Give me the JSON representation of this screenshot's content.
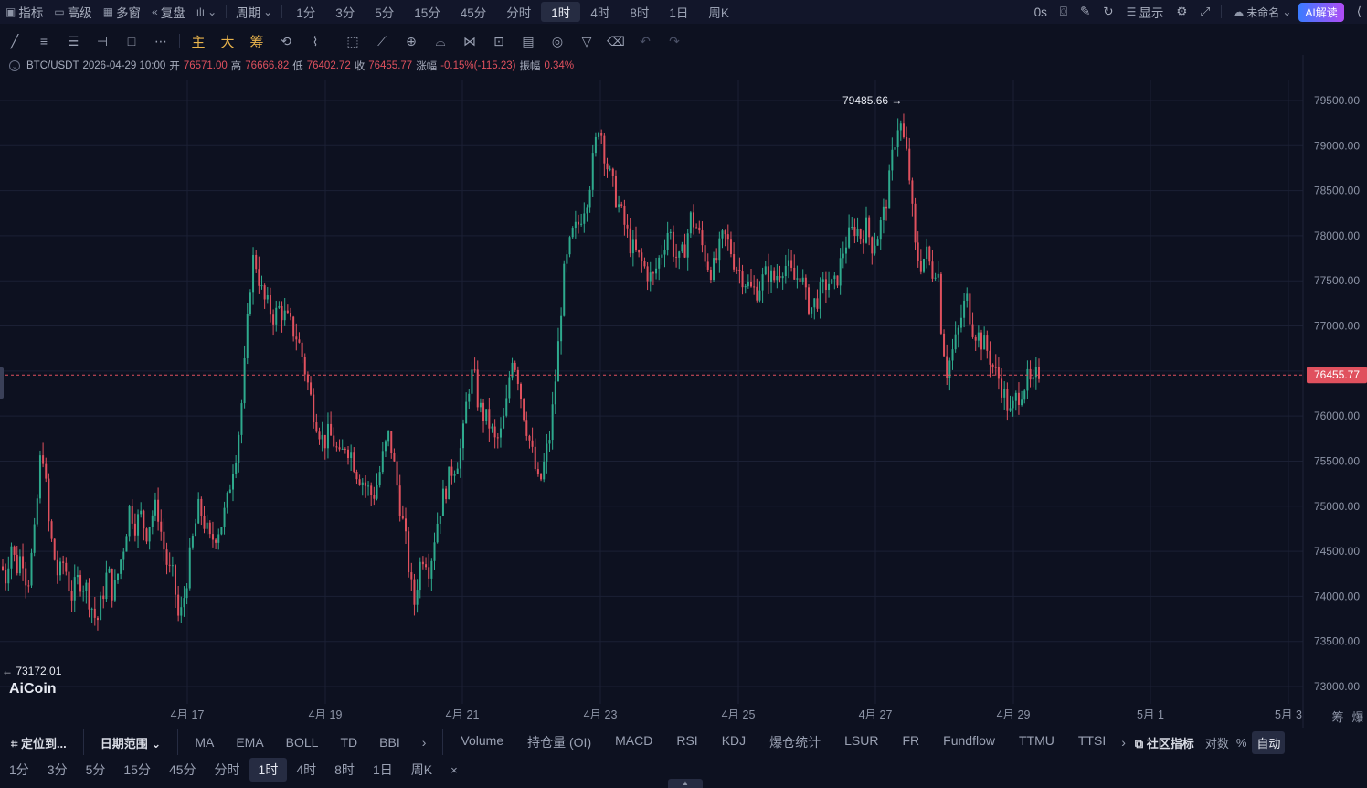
{
  "topbar": {
    "indicators": "指标",
    "advanced": "高级",
    "multi_window": "多窗",
    "replay": "复盘",
    "period": "周期",
    "timeframes": [
      "1分",
      "3分",
      "5分",
      "15分",
      "45分",
      "分时",
      "1时",
      "4时",
      "8时",
      "1日",
      "周K"
    ],
    "active_timeframe": "1时",
    "countdown": "0s",
    "display": "显示",
    "layout_name": "未命名",
    "ai_label": "AI解读"
  },
  "toolbar": {
    "main": "主",
    "large": "大",
    "chips": "筹"
  },
  "info": {
    "symbol": "BTC/USDT",
    "datetime": "2026-04-29 10:00",
    "open_label": "开",
    "open": "76571.00",
    "high_label": "高",
    "high": "76666.82",
    "low_label": "低",
    "low": "76402.72",
    "close_label": "收",
    "close": "76455.77",
    "change_label": "涨幅",
    "change": "-0.15%(-115.23)",
    "amplitude_label": "振幅",
    "amplitude": "0.34%"
  },
  "chart_data": {
    "type": "candlestick",
    "symbol": "BTC/USDT",
    "interval": "1h",
    "y_ticks": [
      73000,
      73500,
      74000,
      74500,
      75000,
      75500,
      76000,
      76500,
      77000,
      77500,
      78000,
      78500,
      79000,
      79500
    ],
    "x_ticks": [
      "4月 17",
      "4月 19",
      "4月 21",
      "4月 23",
      "4月 25",
      "4月 27",
      "4月 29",
      "5月 1",
      "5月 3"
    ],
    "last_price": 76455.77,
    "max_label": "79485.66",
    "min_label": "73172.01",
    "price_path": [
      [
        0,
        74400
      ],
      [
        6,
        74200
      ],
      [
        12,
        74600
      ],
      [
        18,
        74300
      ],
      [
        24,
        74500
      ],
      [
        30,
        74100
      ],
      [
        38,
        74700
      ],
      [
        44,
        75500
      ],
      [
        48,
        75600
      ],
      [
        52,
        74900
      ],
      [
        58,
        74500
      ],
      [
        64,
        74200
      ],
      [
        70,
        74400
      ],
      [
        78,
        74000
      ],
      [
        86,
        74200
      ],
      [
        94,
        74100
      ],
      [
        100,
        73900
      ],
      [
        106,
        73700
      ],
      [
        112,
        74000
      ],
      [
        118,
        74300
      ],
      [
        124,
        74000
      ],
      [
        130,
        74300
      ],
      [
        136,
        74600
      ],
      [
        142,
        75000
      ],
      [
        148,
        74800
      ],
      [
        154,
        74900
      ],
      [
        160,
        74700
      ],
      [
        166,
        74900
      ],
      [
        172,
        75000
      ],
      [
        178,
        74600
      ],
      [
        184,
        74300
      ],
      [
        190,
        74200
      ],
      [
        196,
        73700
      ],
      [
        200,
        73900
      ],
      [
        206,
        74300
      ],
      [
        212,
        74700
      ],
      [
        218,
        75000
      ],
      [
        224,
        74800
      ],
      [
        230,
        74600
      ],
      [
        236,
        74700
      ],
      [
        242,
        74800
      ],
      [
        248,
        75000
      ],
      [
        254,
        75400
      ],
      [
        260,
        75700
      ],
      [
        266,
        76300
      ],
      [
        270,
        76900
      ],
      [
        274,
        77500
      ],
      [
        278,
        77800
      ],
      [
        282,
        77600
      ],
      [
        288,
        77300
      ],
      [
        294,
        77200
      ],
      [
        300,
        77100
      ],
      [
        306,
        77200
      ],
      [
        312,
        77100
      ],
      [
        318,
        77000
      ],
      [
        324,
        76900
      ],
      [
        330,
        76700
      ],
      [
        336,
        76400
      ],
      [
        342,
        76100
      ],
      [
        348,
        75900
      ],
      [
        354,
        75700
      ],
      [
        360,
        75800
      ],
      [
        366,
        75700
      ],
      [
        372,
        75500
      ],
      [
        378,
        75700
      ],
      [
        384,
        75600
      ],
      [
        390,
        75400
      ],
      [
        396,
        75300
      ],
      [
        402,
        75200
      ],
      [
        408,
        75100
      ],
      [
        414,
        75300
      ],
      [
        420,
        75600
      ],
      [
        426,
        75800
      ],
      [
        432,
        75400
      ],
      [
        438,
        75000
      ],
      [
        444,
        74600
      ],
      [
        450,
        74100
      ],
      [
        454,
        73900
      ],
      [
        458,
        74300
      ],
      [
        464,
        74500
      ],
      [
        470,
        74300
      ],
      [
        476,
        74700
      ],
      [
        482,
        75000
      ],
      [
        488,
        75200
      ],
      [
        494,
        75400
      ],
      [
        500,
        75500
      ],
      [
        506,
        75700
      ],
      [
        512,
        76300
      ],
      [
        518,
        76500
      ],
      [
        524,
        76100
      ],
      [
        530,
        76000
      ],
      [
        536,
        75900
      ],
      [
        542,
        75700
      ],
      [
        548,
        75800
      ],
      [
        554,
        76100
      ],
      [
        560,
        76700
      ],
      [
        566,
        76500
      ],
      [
        572,
        76100
      ],
      [
        578,
        75800
      ],
      [
        584,
        75500
      ],
      [
        590,
        75200
      ],
      [
        596,
        75500
      ],
      [
        602,
        75800
      ],
      [
        606,
        76200
      ],
      [
        612,
        76900
      ],
      [
        616,
        77500
      ],
      [
        620,
        77700
      ],
      [
        626,
        78000
      ],
      [
        632,
        78100
      ],
      [
        638,
        78300
      ],
      [
        644,
        78500
      ],
      [
        650,
        78900
      ],
      [
        656,
        79300
      ],
      [
        660,
        79000
      ],
      [
        666,
        78700
      ],
      [
        672,
        78500
      ],
      [
        678,
        78300
      ],
      [
        684,
        78100
      ],
      [
        690,
        77900
      ],
      [
        696,
        77800
      ],
      [
        702,
        77700
      ],
      [
        708,
        77600
      ],
      [
        714,
        77500
      ],
      [
        720,
        77700
      ],
      [
        726,
        77900
      ],
      [
        732,
        78100
      ],
      [
        738,
        77800
      ],
      [
        744,
        77700
      ],
      [
        750,
        77900
      ],
      [
        756,
        78200
      ],
      [
        762,
        78100
      ],
      [
        768,
        77900
      ],
      [
        774,
        77700
      ],
      [
        780,
        77600
      ],
      [
        786,
        77800
      ],
      [
        792,
        78000
      ],
      [
        798,
        77900
      ],
      [
        804,
        77700
      ],
      [
        810,
        77600
      ],
      [
        816,
        77500
      ],
      [
        822,
        77400
      ],
      [
        828,
        77400
      ],
      [
        834,
        77500
      ],
      [
        840,
        77600
      ],
      [
        846,
        77500
      ],
      [
        852,
        77600
      ],
      [
        858,
        77700
      ],
      [
        864,
        77600
      ],
      [
        870,
        77500
      ],
      [
        876,
        77600
      ],
      [
        882,
        77300
      ],
      [
        888,
        77200
      ],
      [
        894,
        77300
      ],
      [
        900,
        77400
      ],
      [
        906,
        77500
      ],
      [
        912,
        77400
      ],
      [
        918,
        77600
      ],
      [
        924,
        77900
      ],
      [
        930,
        78000
      ],
      [
        936,
        78100
      ],
      [
        942,
        78000
      ],
      [
        948,
        78100
      ],
      [
        954,
        77900
      ],
      [
        960,
        78000
      ],
      [
        966,
        78200
      ],
      [
        972,
        78500
      ],
      [
        978,
        79000
      ],
      [
        984,
        79300
      ],
      [
        988,
        79100
      ],
      [
        994,
        78800
      ],
      [
        998,
        78300
      ],
      [
        1002,
        77800
      ],
      [
        1008,
        77700
      ],
      [
        1014,
        77800
      ],
      [
        1020,
        77600
      ],
      [
        1026,
        77700
      ],
      [
        1030,
        77000
      ],
      [
        1036,
        76500
      ],
      [
        1042,
        76700
      ],
      [
        1048,
        76900
      ],
      [
        1054,
        77200
      ],
      [
        1058,
        77300
      ],
      [
        1064,
        77000
      ],
      [
        1070,
        76900
      ],
      [
        1076,
        76800
      ],
      [
        1082,
        76700
      ],
      [
        1088,
        76500
      ],
      [
        1094,
        76400
      ],
      [
        1100,
        76200
      ],
      [
        1106,
        76000
      ],
      [
        1112,
        76200
      ],
      [
        1118,
        76300
      ],
      [
        1124,
        76400
      ],
      [
        1130,
        76300
      ],
      [
        1136,
        76500
      ],
      [
        1140,
        76460
      ]
    ]
  },
  "indicators_bar": {
    "locate": "定位到...",
    "date_range": "日期范围",
    "main": [
      "MA",
      "EMA",
      "BOLL",
      "TD",
      "BBI"
    ],
    "sub": [
      "Volume",
      "持仓量 (OI)",
      "MACD",
      "RSI",
      "KDJ",
      "爆仓统计",
      "LSUR",
      "FR",
      "Fundflow",
      "TTMU",
      "TTSI"
    ],
    "community": "社区指标",
    "log": "对数",
    "percent": "%",
    "auto": "自动"
  },
  "axis_corner": {
    "chips": "筹",
    "burst": "爆"
  },
  "bottom_timeframes": [
    "1分",
    "3分",
    "5分",
    "15分",
    "45分",
    "分时",
    "1时",
    "4时",
    "8时",
    "1日",
    "周K"
  ],
  "bottom_active": "1时",
  "brand": "AiCoin",
  "colors": {
    "up": "#2eaa8d",
    "down": "#e0515e",
    "bg": "#0d1120",
    "grid": "#1b2034"
  }
}
